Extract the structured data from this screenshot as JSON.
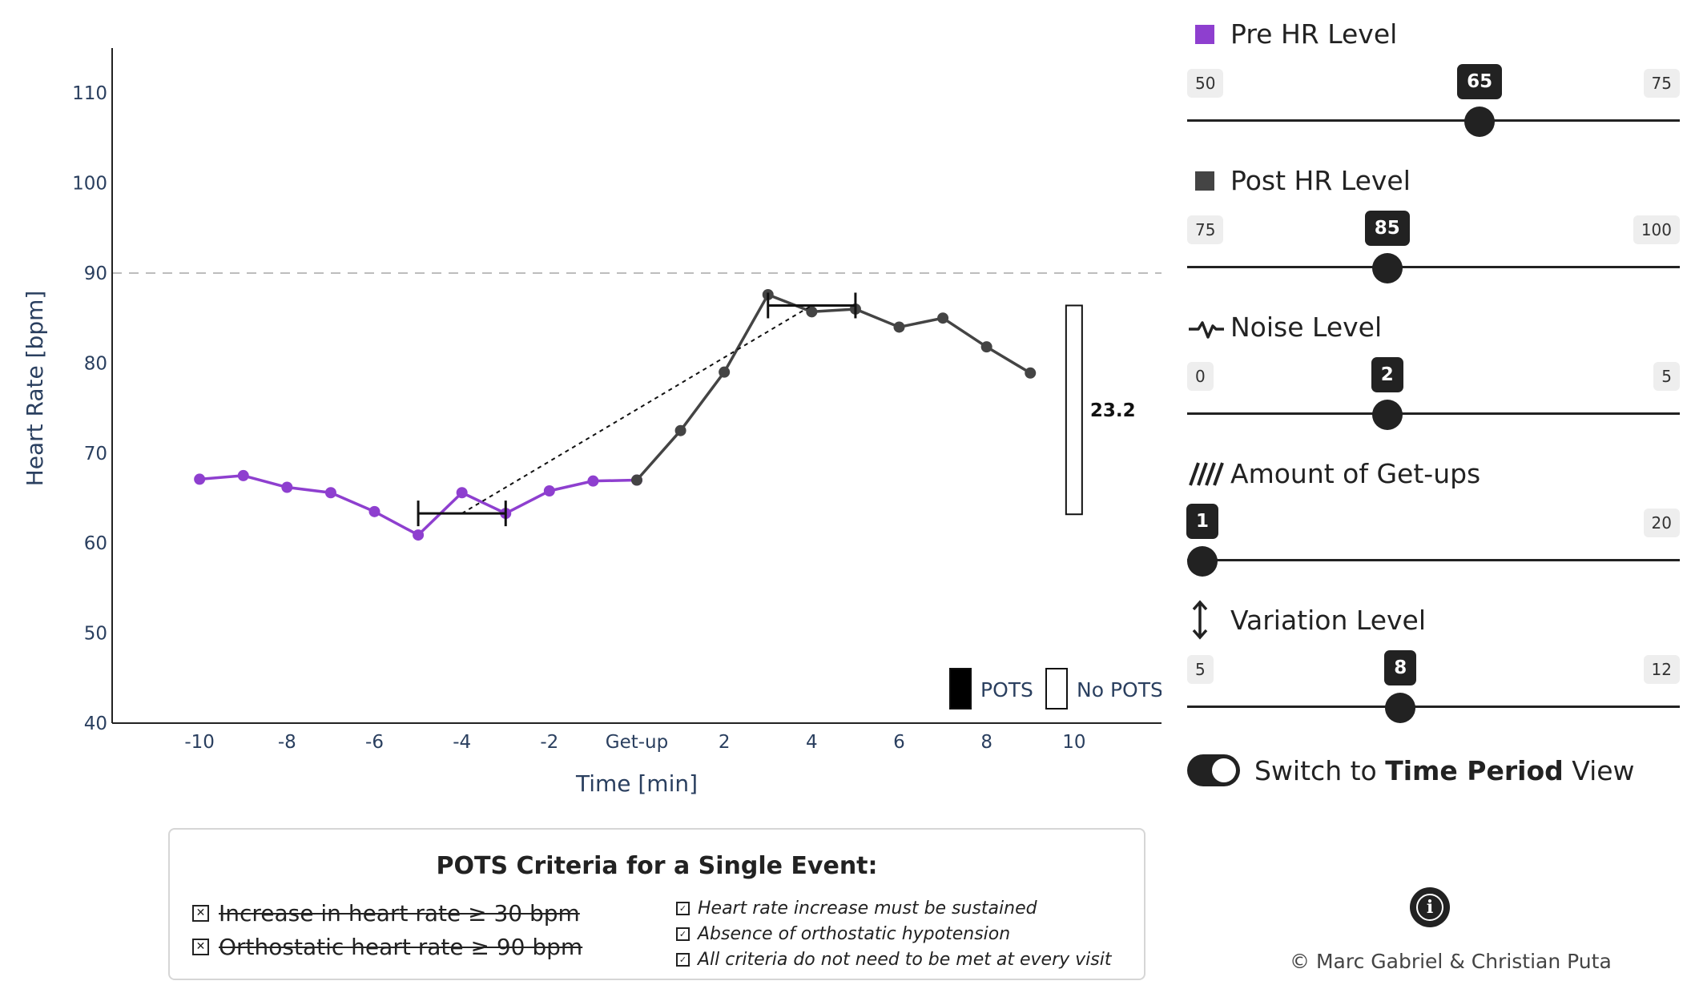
{
  "chart_data": {
    "type": "line",
    "title": "",
    "xlabel": "Time [min]",
    "ylabel": "Heart Rate [bpm]",
    "xlim": [
      -12,
      12
    ],
    "ylim": [
      40,
      115
    ],
    "x_ticks": [
      {
        "value": -10,
        "label": "-10"
      },
      {
        "value": -8,
        "label": "-8"
      },
      {
        "value": -6,
        "label": "-6"
      },
      {
        "value": -4,
        "label": "-4"
      },
      {
        "value": -2,
        "label": "-2"
      },
      {
        "value": 0,
        "label": "Get-up"
      },
      {
        "value": 2,
        "label": "2"
      },
      {
        "value": 4,
        "label": "4"
      },
      {
        "value": 6,
        "label": "6"
      },
      {
        "value": 8,
        "label": "8"
      },
      {
        "value": 10,
        "label": "10"
      }
    ],
    "y_ticks": [
      40,
      50,
      60,
      70,
      80,
      90,
      100,
      110
    ],
    "threshold": 90,
    "series": [
      {
        "color": "#8e3fcf",
        "x": [
          -10,
          -9,
          -8,
          -7,
          -6,
          -5,
          -4,
          -3,
          -2,
          -1,
          0
        ],
        "y": [
          67.1,
          67.5,
          66.2,
          65.6,
          63.5,
          60.9,
          65.6,
          63.3,
          65.8,
          66.9,
          67.0
        ]
      },
      {
        "color": "#444444",
        "x": [
          0,
          1,
          2,
          3,
          4,
          5,
          6,
          7,
          8,
          9
        ],
        "y": [
          67.0,
          72.5,
          79.0,
          87.6,
          85.7,
          86.0,
          84.0,
          85.0,
          81.8,
          78.9
        ]
      }
    ],
    "pre_window": {
      "x0": -5,
      "x1": -3,
      "y": 63.3
    },
    "post_window": {
      "x0": 3,
      "x1": 5,
      "y": 86.4
    },
    "diagonal": {
      "x0": -4,
      "y0": 63.3,
      "x1": 4,
      "y1": 86.4
    },
    "difference_bar": {
      "x": 10,
      "y0": 63.2,
      "y1": 86.4,
      "label": "23.2"
    },
    "legend": [
      {
        "label": "POTS",
        "fill": "#000000"
      },
      {
        "label": "No POTS",
        "fill": "#ffffff"
      }
    ]
  },
  "sliders": [
    {
      "title": "Pre HR Level",
      "icon": "purple-square-icon",
      "min": "50",
      "max": "75",
      "value": "65",
      "frac": 0.6
    },
    {
      "title": "Post HR Level",
      "icon": "gray-square-icon",
      "min": "75",
      "max": "100",
      "value": "85",
      "frac": 0.4
    },
    {
      "title": "Noise Level",
      "icon": "pulse-icon",
      "min": "0",
      "max": "5",
      "value": "2",
      "frac": 0.4
    },
    {
      "title": "Amount of Get-ups",
      "icon": "hatch-icon",
      "min": "1",
      "max": "20",
      "value": "1",
      "frac": 0.0
    },
    {
      "title": "Variation Level",
      "icon": "vertical-arrows-icon",
      "min": "5",
      "max": "12",
      "value": "8",
      "frac": 0.4286
    }
  ],
  "toggle": {
    "prefix": "Switch to ",
    "bold": "Time Period",
    "suffix": " View"
  },
  "info_symbol": "i",
  "copyright": "© Marc Gabriel & Christian Puta",
  "criteria": {
    "title": "POTS Criteria for a Single Event:",
    "main": [
      "Increase in heart rate ≥ 30 bpm",
      "Orthostatic heart rate ≥ 90 bpm"
    ],
    "notes": [
      "Heart rate increase must be sustained",
      "Absence of orthostatic hypotension",
      "All criteria do not need to be met at every visit"
    ]
  },
  "colors": {
    "pre": "#8e3fcf",
    "post": "#444444",
    "axis": "#2a3f5f"
  }
}
